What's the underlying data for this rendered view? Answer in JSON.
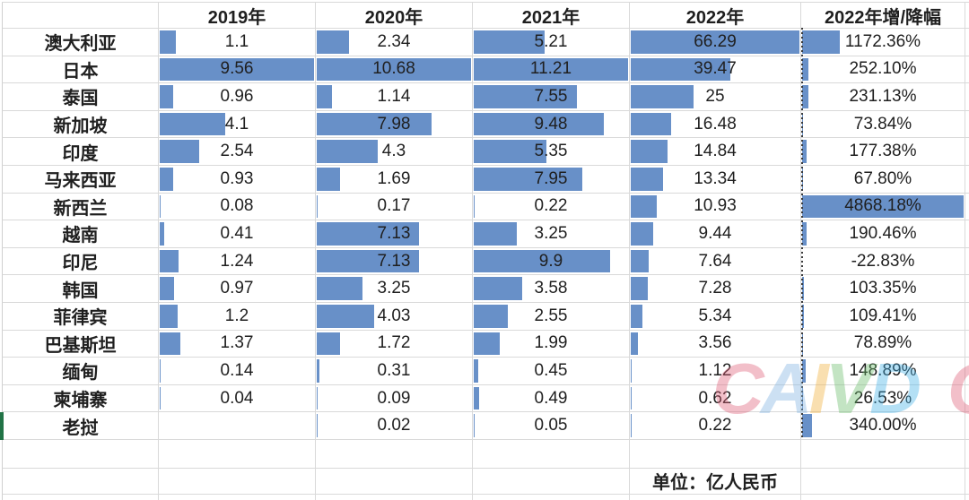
{
  "table": {
    "columns": [
      "",
      "2019年",
      "2020年",
      "2021年",
      "2022年",
      "2022年增/降幅"
    ],
    "column_max": [
      9.56,
      10.68,
      11.21,
      66.29,
      4868.18
    ],
    "rows": [
      {
        "label": "澳大利亚",
        "values": [
          "1.1",
          "2.34",
          "5.21",
          "66.29",
          "1172.36%"
        ]
      },
      {
        "label": "日本",
        "values": [
          "9.56",
          "10.68",
          "11.21",
          "39.47",
          "252.10%"
        ]
      },
      {
        "label": "泰国",
        "values": [
          "0.96",
          "1.14",
          "7.55",
          "25",
          "231.13%"
        ]
      },
      {
        "label": "新加坡",
        "values": [
          "4.1",
          "7.98",
          "9.48",
          "16.48",
          "73.84%"
        ]
      },
      {
        "label": "印度",
        "values": [
          "2.54",
          "4.3",
          "5.35",
          "14.84",
          "177.38%"
        ]
      },
      {
        "label": "马来西亚",
        "values": [
          "0.93",
          "1.69",
          "7.95",
          "13.34",
          "67.80%"
        ]
      },
      {
        "label": "新西兰",
        "values": [
          "0.08",
          "0.17",
          "0.22",
          "10.93",
          "4868.18%"
        ]
      },
      {
        "label": "越南",
        "values": [
          "0.41",
          "7.13",
          "3.25",
          "9.44",
          "190.46%"
        ]
      },
      {
        "label": "印尼",
        "values": [
          "1.24",
          "7.13",
          "9.9",
          "7.64",
          "-22.83%"
        ]
      },
      {
        "label": "韩国",
        "values": [
          "0.97",
          "3.25",
          "3.58",
          "7.28",
          "103.35%"
        ]
      },
      {
        "label": "菲律宾",
        "values": [
          "1.2",
          "4.03",
          "2.55",
          "5.34",
          "109.41%"
        ]
      },
      {
        "label": "巴基斯坦",
        "values": [
          "1.37",
          "1.72",
          "1.99",
          "3.56",
          "78.89%"
        ]
      },
      {
        "label": "缅甸",
        "values": [
          "0.14",
          "0.31",
          "0.45",
          "1.12",
          "148.89%"
        ]
      },
      {
        "label": "柬埔寨",
        "values": [
          "0.04",
          "0.09",
          "0.49",
          "0.62",
          "26.53%"
        ]
      },
      {
        "label": "老挝",
        "values": [
          "",
          "0.02",
          "0.05",
          "0.22",
          "340.00%"
        ]
      }
    ]
  },
  "footer": {
    "unit_note": "单位：亿人民币"
  },
  "watermark": {
    "letters": [
      {
        "char": "C",
        "color": "#e0607a"
      },
      {
        "char": "A",
        "color": "#82b4e2"
      },
      {
        "char": "I",
        "color": "#f2b03c"
      },
      {
        "char": "V",
        "color": "#6cbd6c"
      },
      {
        "char": "D",
        "color": "#46b2e8"
      }
    ],
    "partial_letter": {
      "char": "C",
      "color": "#e0607a"
    }
  },
  "colors": {
    "data_bar": "#6890c8",
    "gridline": "#d9d9d9",
    "page_break_line": "#3c3c3c",
    "selection_green": "#217346",
    "text": "#1f1f1f"
  }
}
